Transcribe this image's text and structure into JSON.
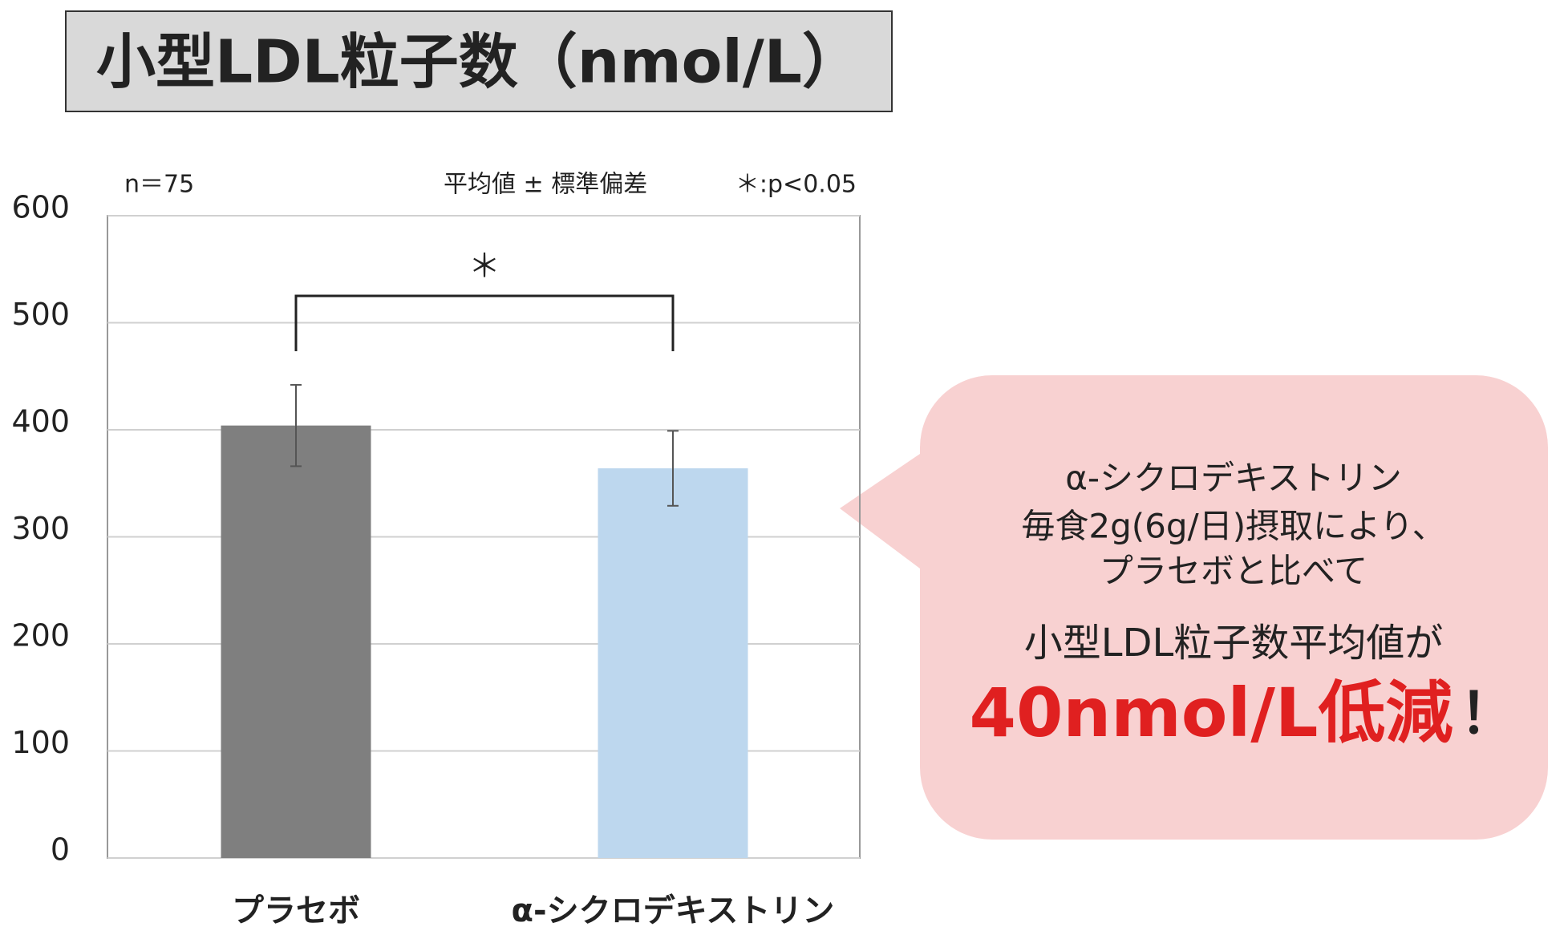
{
  "chart_data": {
    "type": "bar",
    "title": "小型LDL粒子数（nmol/L）",
    "categories": [
      "プラセボ",
      "α-シクロデキストリン"
    ],
    "values": [
      404,
      364
    ],
    "errors": [
      38,
      35
    ],
    "colors": [
      "#7f7f7f",
      "#bdd7ee"
    ],
    "ylim": [
      0,
      600
    ],
    "yticks": [
      0,
      100,
      200,
      300,
      400,
      500,
      600
    ],
    "grid": true,
    "annotations": [
      "n＝75",
      "平均値 ± 標準偏差",
      "＊:p<0.05"
    ],
    "significance": "＊",
    "callout": {
      "lines": [
        "α-シクロデキストリン",
        "毎食2g(6g/日)摂取により、",
        "プラセボと比べて",
        "小型LDL粒子数平均値が"
      ],
      "highlight": "40nmol/L低減",
      "mark": "！"
    }
  }
}
